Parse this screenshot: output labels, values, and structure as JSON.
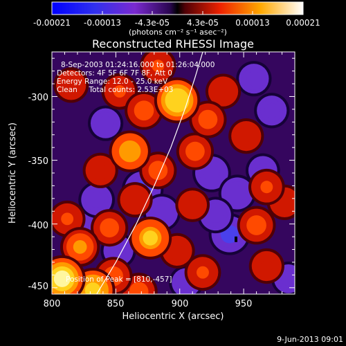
{
  "chart_data": {
    "type": "heatmap",
    "title": "Reconstructed RHESSI Image",
    "xlabel": "Heliocentric X (arcsec)",
    "ylabel": "Heliocentric Y (arcsec)",
    "xlim": [
      800,
      990
    ],
    "ylim": [
      -455,
      -265
    ],
    "x_ticks": [
      "800",
      "850",
      "900",
      "950"
    ],
    "y_ticks": [
      "-450",
      "-400",
      "-350",
      "-300"
    ],
    "colorbar": {
      "ticks": [
        "-0.00021",
        "-0.00013",
        "-4.3e-05",
        "4.3e-05",
        "0.00013",
        "0.00021"
      ],
      "label": "(photons cm⁻² s⁻¹ asec⁻²)",
      "vmin": -0.00021,
      "vmax": 0.00021
    },
    "annotations": [
      "8-Sep-2003 01:24:16.000 to 01:26:04.000",
      "Detectors: 4F 5F 6F 7F 8F, Att 0",
      "Energy Range: 12.0 - 25.0 keV",
      "Clean     Total counts: 2.53E+03"
    ],
    "peak_label": "Position of Peak = [810,-457]",
    "peak": [
      810,
      -457
    ],
    "limb_curve": [
      [
        835,
        -455
      ],
      [
        850,
        -430
      ],
      [
        866,
        -400
      ],
      [
        880,
        -370
      ],
      [
        893,
        -340
      ],
      [
        904,
        -310
      ],
      [
        912,
        -285
      ],
      [
        918,
        -265
      ]
    ],
    "blobs": [
      {
        "x": 808,
        "y": -443,
        "v": 0.00021
      },
      {
        "x": 832,
        "y": -452,
        "v": 0.00019
      },
      {
        "x": 848,
        "y": -441,
        "v": 0.00013
      },
      {
        "x": 822,
        "y": -418,
        "v": 0.00014
      },
      {
        "x": 812,
        "y": -396,
        "v": 0.00011
      },
      {
        "x": 845,
        "y": -403,
        "v": 0.00012
      },
      {
        "x": 877,
        "y": -411,
        "v": 0.00017
      },
      {
        "x": 898,
        "y": -421,
        "v": 0.0001
      },
      {
        "x": 865,
        "y": -381,
        "v": 0.0001
      },
      {
        "x": 883,
        "y": -358,
        "v": 0.00012
      },
      {
        "x": 861,
        "y": -343,
        "v": 0.00016
      },
      {
        "x": 838,
        "y": -358,
        "v": 0.0001
      },
      {
        "x": 912,
        "y": -343,
        "v": 0.00012
      },
      {
        "x": 922,
        "y": -318,
        "v": 0.00012
      },
      {
        "x": 898,
        "y": -303,
        "v": 0.0002
      },
      {
        "x": 872,
        "y": -311,
        "v": 0.00013
      },
      {
        "x": 853,
        "y": -296,
        "v": 0.00011
      },
      {
        "x": 883,
        "y": -276,
        "v": 0.00011
      },
      {
        "x": 934,
        "y": -296,
        "v": 0.0001
      },
      {
        "x": 952,
        "y": -331,
        "v": 0.0001
      },
      {
        "x": 968,
        "y": -371,
        "v": 0.00011
      },
      {
        "x": 960,
        "y": -401,
        "v": 0.00013
      },
      {
        "x": 968,
        "y": -433,
        "v": 0.0001
      },
      {
        "x": 982,
        "y": -383,
        "v": 0.0001
      },
      {
        "x": 918,
        "y": -438,
        "v": 0.00011
      },
      {
        "x": 868,
        "y": -453,
        "v": 0.00012
      },
      {
        "x": 815,
        "y": -291,
        "v": 0.0001
      },
      {
        "x": 910,
        "y": -385,
        "v": 9e-05
      },
      {
        "x": 925,
        "y": -360,
        "v": -0.00013
      },
      {
        "x": 939,
        "y": -408,
        "v": -0.00016
      },
      {
        "x": 945,
        "y": -376,
        "v": -0.00012
      },
      {
        "x": 871,
        "y": -373,
        "v": -0.00016
      },
      {
        "x": 886,
        "y": -391,
        "v": -0.00012
      },
      {
        "x": 822,
        "y": -403,
        "v": -0.00013
      },
      {
        "x": 835,
        "y": -381,
        "v": -0.00011
      },
      {
        "x": 852,
        "y": -421,
        "v": -0.0001
      },
      {
        "x": 842,
        "y": -321,
        "v": -0.0001
      },
      {
        "x": 958,
        "y": -286,
        "v": -0.0001
      },
      {
        "x": 972,
        "y": -311,
        "v": -0.0001
      },
      {
        "x": 905,
        "y": -446,
        "v": -9e-05
      },
      {
        "x": 985,
        "y": -443,
        "v": -9e-05
      },
      {
        "x": 928,
        "y": -393,
        "v": -0.00011
      },
      {
        "x": 965,
        "y": -358,
        "v": -9e-05
      }
    ]
  },
  "footer": {
    "date": "9-Jun-2013 09:01"
  }
}
